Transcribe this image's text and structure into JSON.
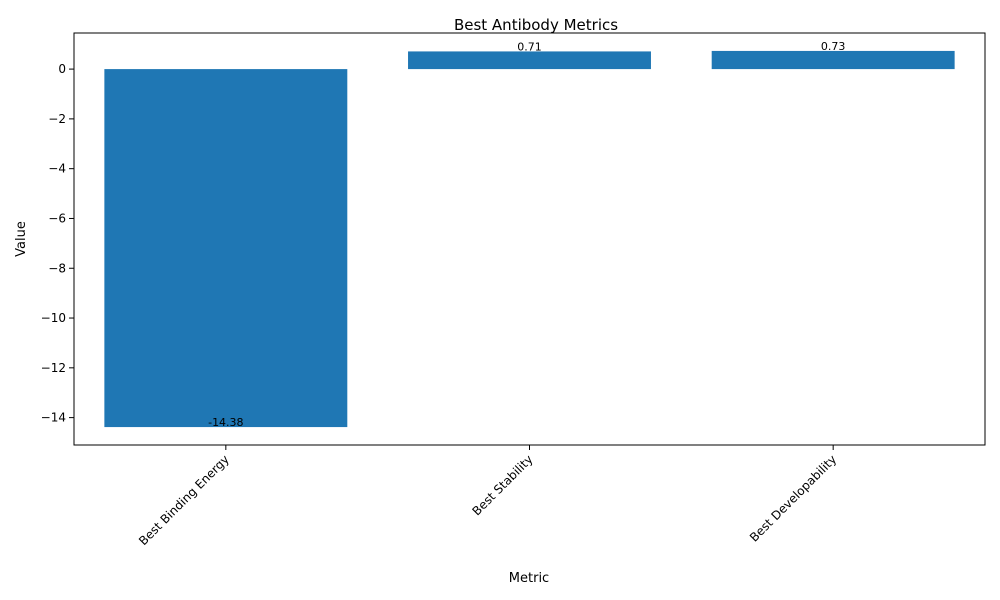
{
  "chart_data": {
    "type": "bar",
    "title": "Best Antibody Metrics",
    "xlabel": "Metric",
    "ylabel": "Value",
    "categories": [
      "Best Binding Energy",
      "Best Stability",
      "Best Developability"
    ],
    "values": [
      -14.38,
      0.71,
      0.73
    ],
    "data_labels": [
      "-14.38",
      "0.71",
      "0.73"
    ],
    "ylim": [
      -15.1,
      1.45
    ],
    "yticks": [
      0,
      -2,
      -4,
      -6,
      -8,
      -10,
      -12,
      -14
    ],
    "ytick_labels": [
      "0",
      "−2",
      "−4",
      "−6",
      "−8",
      "−10",
      "−12",
      "−14"
    ],
    "bar_color": "#1f77b4",
    "grid": false,
    "legend": false
  }
}
